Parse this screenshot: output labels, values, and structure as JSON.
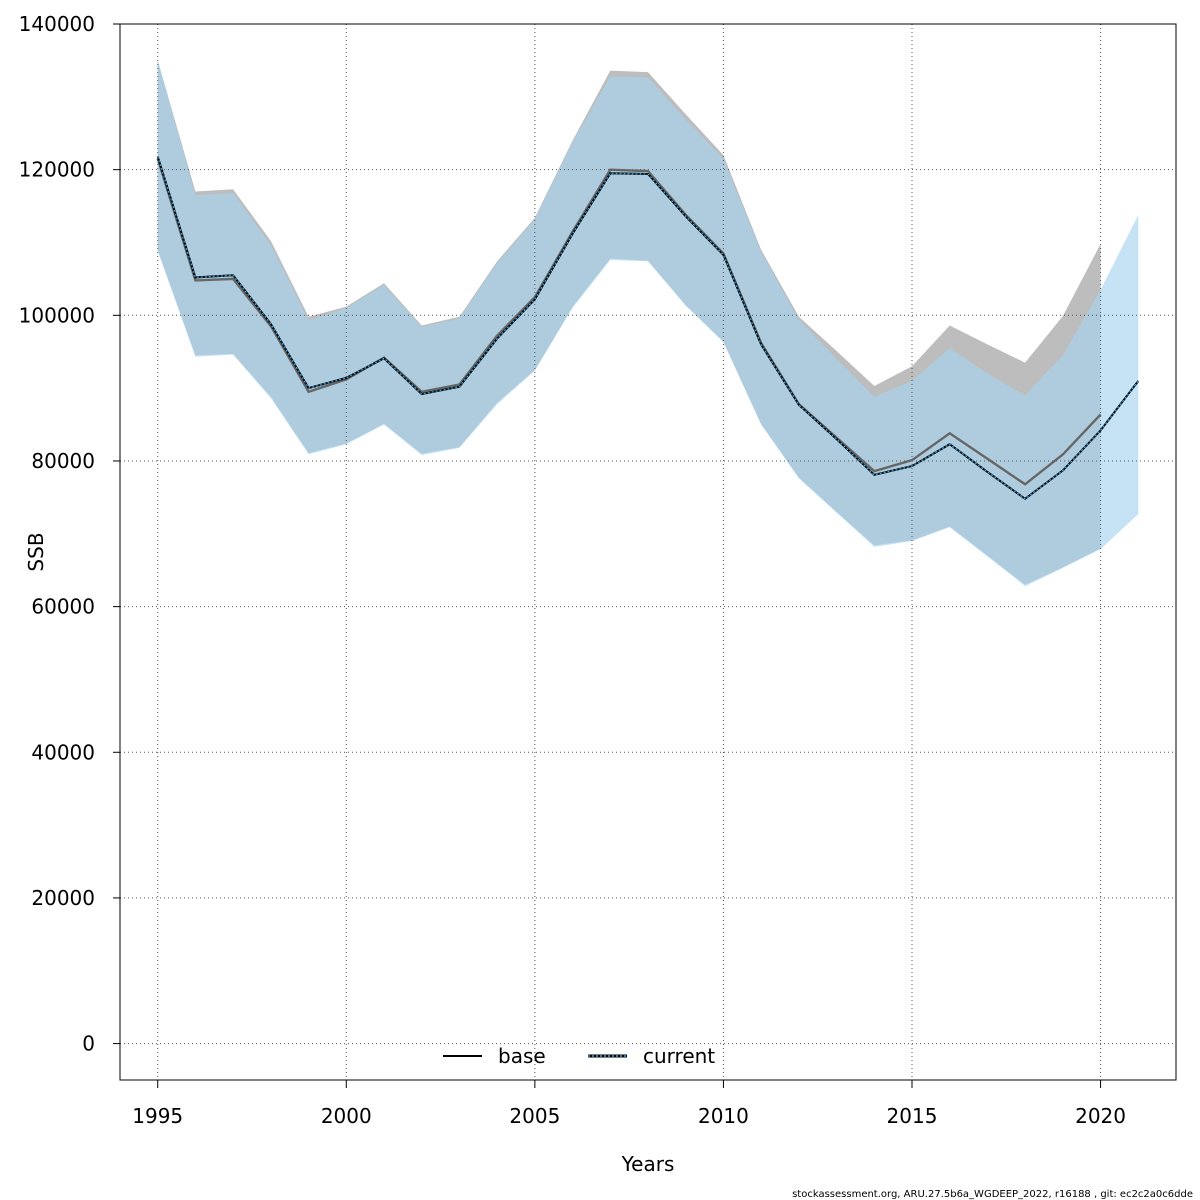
{
  "chart_data": {
    "type": "line",
    "title": "",
    "xlabel": "Years",
    "ylabel": "SSB",
    "xlim": [
      1994,
      2022
    ],
    "ylim": [
      -5000,
      140000
    ],
    "xticks": [
      1995,
      2000,
      2005,
      2010,
      2015,
      2020
    ],
    "yticks": [
      0,
      20000,
      40000,
      60000,
      80000,
      100000,
      120000,
      140000
    ],
    "grid": true,
    "legend_placement": "bottom",
    "series": [
      {
        "name": "base",
        "color": "#000000",
        "band_color": "#bdbdbd",
        "line_style": "solid",
        "x": [
          1995,
          1996,
          1997,
          1998,
          1999,
          2000,
          2001,
          2002,
          2003,
          2004,
          2005,
          2006,
          2007,
          2008,
          2009,
          2010,
          2011,
          2012,
          2013,
          2014,
          2015,
          2016,
          2017,
          2018,
          2019,
          2020
        ],
        "values": [
          121500,
          104800,
          105000,
          98500,
          89500,
          91200,
          94200,
          89500,
          90500,
          97200,
          102500,
          111500,
          120000,
          119800,
          113800,
          108500,
          96200,
          87800,
          83200,
          78600,
          80100,
          83800,
          80300,
          76800,
          80900,
          86400
        ],
        "lower": [
          109000,
          94500,
          94700,
          88800,
          81100,
          82400,
          85100,
          81000,
          81900,
          88000,
          92500,
          101200,
          107800,
          107500,
          101400,
          96400,
          85100,
          77700,
          73000,
          68400,
          69100,
          71000,
          67000,
          63000,
          65400,
          68000
        ],
        "upper": [
          135000,
          117000,
          117300,
          110200,
          99800,
          101200,
          104400,
          98600,
          99800,
          107400,
          113400,
          124000,
          133600,
          133400,
          127600,
          122000,
          109000,
          99800,
          95100,
          90300,
          93000,
          98600,
          96000,
          93500,
          99900,
          109800
        ]
      },
      {
        "name": "current",
        "color": "#004a80",
        "band_color": "#a6d4f0",
        "line_style": "dotted",
        "x": [
          1995,
          1996,
          1997,
          1998,
          1999,
          2000,
          2001,
          2002,
          2003,
          2004,
          2005,
          2006,
          2007,
          2008,
          2009,
          2010,
          2011,
          2012,
          2013,
          2014,
          2015,
          2016,
          2017,
          2018,
          2019,
          2020,
          2021
        ],
        "values": [
          121800,
          105200,
          105500,
          98800,
          90000,
          91400,
          94100,
          89200,
          90200,
          96800,
          102200,
          111200,
          119500,
          119400,
          113600,
          108300,
          96000,
          87700,
          83000,
          78100,
          79300,
          82300,
          78500,
          74800,
          78700,
          84200,
          91000
        ],
        "lower": [
          108800,
          94300,
          94600,
          88600,
          80900,
          82300,
          85000,
          80800,
          81800,
          87800,
          92400,
          101000,
          107600,
          107400,
          101300,
          96300,
          85000,
          77600,
          72900,
          68200,
          69000,
          70900,
          66900,
          62800,
          65300,
          67900,
          72700
        ],
        "upper": [
          135000,
          116500,
          116800,
          109700,
          99300,
          101000,
          104200,
          98400,
          99600,
          107200,
          113200,
          123800,
          132800,
          132700,
          126900,
          121500,
          108700,
          99400,
          94000,
          88800,
          91000,
          95500,
          92000,
          89000,
          94500,
          103500,
          113800
        ]
      }
    ]
  },
  "footer": "stockassessment.org, ARU.27.5b6a_WGDEEP_2022, r16188 , git: ec2c2a0c6dde"
}
